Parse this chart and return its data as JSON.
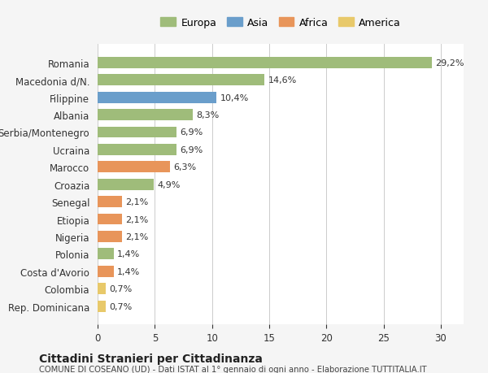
{
  "categories": [
    "Rep. Dominicana",
    "Colombia",
    "Costa d'Avorio",
    "Polonia",
    "Nigeria",
    "Etiopia",
    "Senegal",
    "Croazia",
    "Marocco",
    "Ucraina",
    "Serbia/Montenegro",
    "Albania",
    "Filippine",
    "Macedonia d/N.",
    "Romania"
  ],
  "values": [
    0.7,
    0.7,
    1.4,
    1.4,
    2.1,
    2.1,
    2.1,
    4.9,
    6.3,
    6.9,
    6.9,
    8.3,
    10.4,
    14.6,
    29.2
  ],
  "labels": [
    "0,7%",
    "0,7%",
    "1,4%",
    "1,4%",
    "2,1%",
    "2,1%",
    "2,1%",
    "4,9%",
    "6,3%",
    "6,9%",
    "6,9%",
    "8,3%",
    "10,4%",
    "14,6%",
    "29,2%"
  ],
  "colors": [
    "#e8c96a",
    "#e8c96a",
    "#e8955a",
    "#9fbc7a",
    "#e8955a",
    "#e8955a",
    "#e8955a",
    "#9fbc7a",
    "#e8955a",
    "#9fbc7a",
    "#9fbc7a",
    "#9fbc7a",
    "#6a9ecb",
    "#9fbc7a",
    "#9fbc7a"
  ],
  "continent": [
    "America",
    "America",
    "Africa",
    "Europa",
    "Africa",
    "Africa",
    "Africa",
    "Europa",
    "Africa",
    "Europa",
    "Europa",
    "Europa",
    "Asia",
    "Europa",
    "Europa"
  ],
  "legend_labels": [
    "Europa",
    "Asia",
    "Africa",
    "America"
  ],
  "legend_colors": [
    "#9fbc7a",
    "#6a9ecb",
    "#e8955a",
    "#e8c96a"
  ],
  "title": "Cittadini Stranieri per Cittadinanza",
  "subtitle": "COMUNE DI COSEANO (UD) - Dati ISTAT al 1° gennaio di ogni anno - Elaborazione TUTTITALIA.IT",
  "xlim": [
    0,
    32
  ],
  "xticks": [
    0,
    5,
    10,
    15,
    20,
    25,
    30
  ],
  "background_color": "#f5f5f5",
  "bar_background": "#ffffff",
  "grid_color": "#cccccc"
}
